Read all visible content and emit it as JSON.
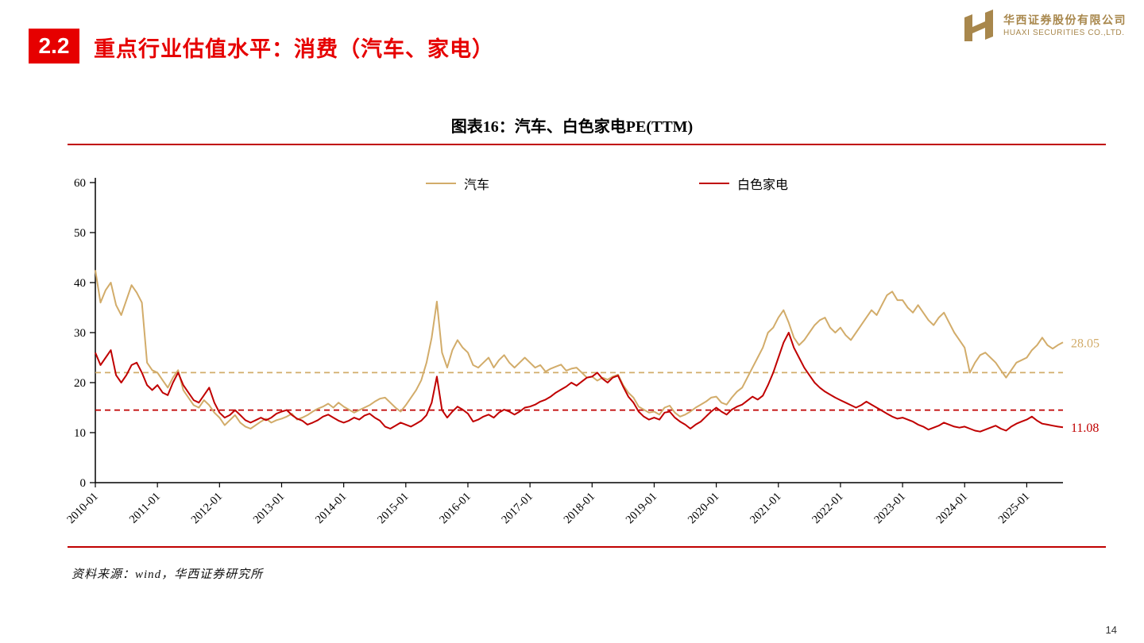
{
  "page": {
    "section_number": "2.2",
    "title": "重点行业估值水平：消费（汽车、家电）",
    "page_number": "14",
    "source": "资料来源：wind，华西证券研究所"
  },
  "logo": {
    "company_cn": "华西证券股份有限公司",
    "company_en": "HUAXI SECURITIES CO.,LTD.",
    "color": "#a8874c"
  },
  "colors": {
    "accent_red": "#e60000",
    "rule_red": "#c00000",
    "series_auto": "#d2ac6a",
    "series_appliance": "#c00000"
  },
  "chart_data": {
    "type": "line",
    "title": "图表16：汽车、白色家电PE(TTM)",
    "x_start": "2010-01",
    "x_frequency": "monthly",
    "x_tick_labels": [
      "2010-01",
      "2011-01",
      "2012-01",
      "2013-01",
      "2014-01",
      "2015-01",
      "2016-01",
      "2017-01",
      "2018-01",
      "2019-01",
      "2020-01",
      "2021-01",
      "2022-01",
      "2023-01",
      "2024-01",
      "2025-01"
    ],
    "ylim": [
      0,
      60
    ],
    "yticks": [
      0,
      10,
      20,
      30,
      40,
      50,
      60
    ],
    "grid": false,
    "legend_position": "top",
    "dashed_lines": [
      {
        "series": "汽车",
        "value": 22.0,
        "color": "#d2ac6a"
      },
      {
        "series": "白色家电",
        "value": 14.5,
        "color": "#c00000"
      }
    ],
    "series": [
      {
        "name": "汽车",
        "color": "#d2ac6a",
        "data_name": "auto-series-line",
        "last_label": "28.05",
        "values": [
          42.5,
          36.0,
          38.5,
          40.0,
          35.5,
          33.5,
          36.5,
          39.5,
          38.0,
          36.0,
          24.0,
          22.5,
          22.0,
          20.5,
          19.0,
          21.0,
          22.5,
          18.5,
          17.0,
          15.5,
          15.0,
          16.5,
          15.5,
          14.0,
          13.0,
          11.5,
          12.5,
          13.5,
          12.0,
          11.2,
          10.8,
          11.5,
          12.2,
          12.8,
          12.0,
          12.5,
          12.8,
          13.2,
          13.8,
          12.6,
          13.0,
          13.5,
          14.2,
          14.8,
          15.2,
          15.8,
          15.0,
          16.0,
          15.2,
          14.6,
          14.0,
          14.5,
          15.0,
          15.5,
          16.2,
          16.8,
          17.0,
          16.0,
          15.0,
          14.2,
          15.5,
          17.0,
          18.5,
          20.5,
          24.0,
          29.0,
          36.2,
          26.0,
          23.0,
          26.5,
          28.5,
          27.0,
          26.0,
          23.5,
          23.0,
          24.0,
          25.0,
          23.0,
          24.5,
          25.5,
          24.0,
          23.0,
          24.0,
          25.0,
          24.0,
          23.0,
          23.5,
          22.2,
          22.8,
          23.2,
          23.6,
          22.4,
          22.8,
          23.0,
          22.0,
          21.0,
          21.2,
          20.4,
          21.0,
          20.6,
          21.2,
          21.6,
          19.5,
          18.0,
          17.0,
          15.2,
          14.6,
          14.0,
          14.2,
          13.6,
          15.0,
          15.4,
          14.0,
          13.2,
          13.6,
          14.2,
          15.0,
          15.6,
          16.2,
          17.0,
          17.2,
          16.0,
          15.6,
          17.0,
          18.2,
          19.0,
          21.0,
          23.0,
          25.0,
          27.0,
          30.0,
          31.0,
          33.0,
          34.5,
          32.0,
          29.0,
          27.5,
          28.5,
          30.0,
          31.5,
          32.5,
          33.0,
          31.0,
          30.0,
          31.0,
          29.5,
          28.5,
          30.0,
          31.5,
          33.0,
          34.5,
          33.5,
          35.5,
          37.5,
          38.2,
          36.5,
          36.5,
          35.0,
          34.0,
          35.5,
          34.0,
          32.5,
          31.5,
          33.0,
          34.0,
          32.0,
          30.0,
          28.5,
          27.0,
          22.0,
          24.0,
          25.5,
          26.0,
          25.0,
          24.0,
          22.5,
          21.0,
          22.5,
          24.0,
          24.5,
          25.0,
          26.5,
          27.5,
          29.0,
          27.5,
          26.8,
          27.5,
          28.05
        ]
      },
      {
        "name": "白色家电",
        "color": "#c00000",
        "data_name": "appliance-series-line",
        "last_label": "11.08",
        "values": [
          26.0,
          23.5,
          25.0,
          26.5,
          21.5,
          20.0,
          21.5,
          23.5,
          24.0,
          22.0,
          19.5,
          18.5,
          19.5,
          18.0,
          17.5,
          20.0,
          22.0,
          19.5,
          18.0,
          16.5,
          16.0,
          17.5,
          19.0,
          16.0,
          14.0,
          13.0,
          13.5,
          14.5,
          13.5,
          12.5,
          12.0,
          12.5,
          13.0,
          12.5,
          13.0,
          13.8,
          14.2,
          14.5,
          13.5,
          12.8,
          12.4,
          11.6,
          12.0,
          12.5,
          13.2,
          13.6,
          13.0,
          12.4,
          12.0,
          12.4,
          13.0,
          12.6,
          13.4,
          13.8,
          13.0,
          12.4,
          11.2,
          10.8,
          11.4,
          12.0,
          11.6,
          11.2,
          11.8,
          12.4,
          13.5,
          16.0,
          21.2,
          14.5,
          13.0,
          14.2,
          15.2,
          14.6,
          13.8,
          12.2,
          12.6,
          13.2,
          13.6,
          13.0,
          14.0,
          14.6,
          14.2,
          13.6,
          14.2,
          15.0,
          15.2,
          15.6,
          16.2,
          16.6,
          17.2,
          18.0,
          18.6,
          19.2,
          20.0,
          19.4,
          20.2,
          21.0,
          21.2,
          22.0,
          20.8,
          20.0,
          21.0,
          21.4,
          19.2,
          17.2,
          16.0,
          14.2,
          13.2,
          12.6,
          13.0,
          12.6,
          14.0,
          14.2,
          13.0,
          12.2,
          11.6,
          10.8,
          11.6,
          12.2,
          13.2,
          14.2,
          15.0,
          14.2,
          13.6,
          14.6,
          15.2,
          15.6,
          16.4,
          17.2,
          16.6,
          17.4,
          19.5,
          22.0,
          25.0,
          28.0,
          30.0,
          27.0,
          25.0,
          23.0,
          21.5,
          20.0,
          19.0,
          18.2,
          17.6,
          17.0,
          16.5,
          16.0,
          15.5,
          15.0,
          15.5,
          16.2,
          15.6,
          15.0,
          14.4,
          13.8,
          13.2,
          12.8,
          13.0,
          12.6,
          12.2,
          11.6,
          11.2,
          10.6,
          11.0,
          11.4,
          12.0,
          11.6,
          11.2,
          11.0,
          11.2,
          10.8,
          10.4,
          10.2,
          10.6,
          11.0,
          11.4,
          10.8,
          10.4,
          11.2,
          11.8,
          12.2,
          12.6,
          13.2,
          12.4,
          11.8,
          11.6,
          11.4,
          11.2,
          11.08
        ]
      }
    ]
  }
}
